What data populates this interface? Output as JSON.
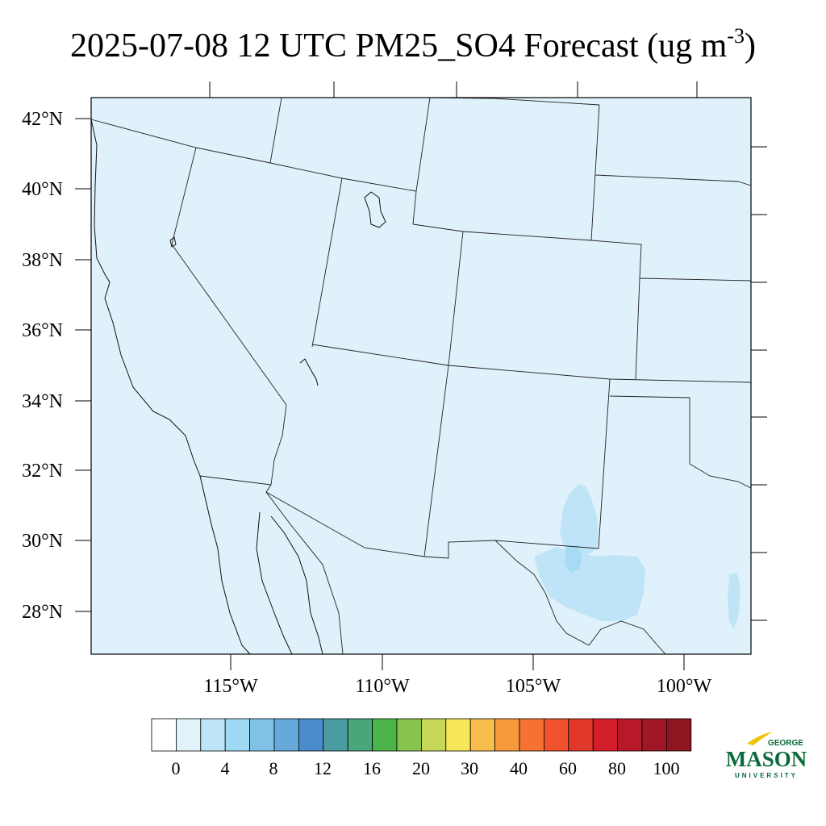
{
  "map": {
    "title_main": "2025-07-08 12 UTC PM25_SO4 Forecast (ug m",
    "title_sup": "-3",
    "title_close": ")",
    "lat_labels": [
      "42°N",
      "40°N",
      "38°N",
      "36°N",
      "34°N",
      "32°N",
      "30°N",
      "28°N"
    ],
    "lon_labels": [
      "115°W",
      "110°W",
      "105°W",
      "100°W"
    ],
    "base_fill_color": "#dff1fb",
    "highlight_colors": [
      "#bfe4f7",
      "#a7daf3",
      "#8ecdef"
    ]
  },
  "legend": {
    "colors": [
      "#ffffff",
      "#e0f3fb",
      "#bde5f7",
      "#9fd9f3",
      "#80c1e8",
      "#67a8da",
      "#4a8ccb",
      "#4b9ca0",
      "#4aa57a",
      "#4bb54a",
      "#86c44e",
      "#c7d858",
      "#f8e659",
      "#f8be4b",
      "#f79a3c",
      "#f57232",
      "#ef522d",
      "#e0392a",
      "#d41f2a",
      "#b7182a",
      "#a21725",
      "#8d1620"
    ],
    "tick_labels": [
      "0",
      "4",
      "8",
      "12",
      "16",
      "20",
      "30",
      "40",
      "60",
      "80",
      "100"
    ]
  },
  "logo": {
    "line1": "GEORGE",
    "line2": "MASON",
    "line3": "UNIVERSITY"
  }
}
